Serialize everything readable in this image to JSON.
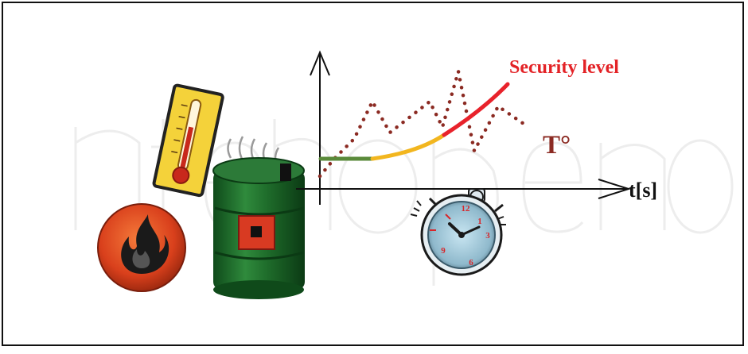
{
  "labels": {
    "security_level": "Security level",
    "temperature": "T°",
    "time_axis": "t[s]"
  },
  "watermark": "IntechOpen",
  "colors": {
    "security_green": "#5a8a3a",
    "security_yellow": "#f2b61f",
    "security_red": "#e8222b",
    "temperature_dots": "#8b2a22",
    "temperature_label": "#8b2a22",
    "security_label": "#e32226",
    "barrel": "#1e6b2a",
    "fire_badge": "#d9401c",
    "thermometer": "#f4d23a"
  },
  "icons": [
    "thermometer-icon",
    "fire-icon",
    "barrel-icon",
    "stopwatch-icon"
  ]
}
